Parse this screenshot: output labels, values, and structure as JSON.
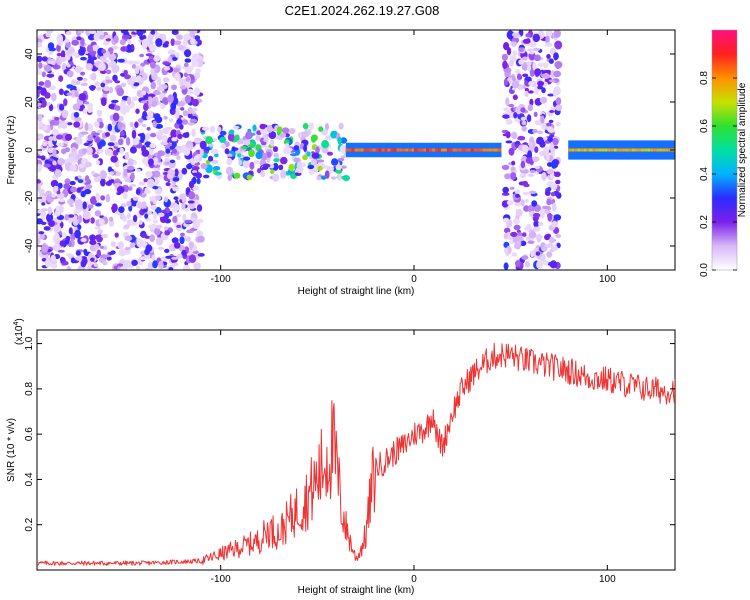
{
  "figure_title": "C2E1.2024.262.19.27.G08",
  "chart_data": [
    {
      "type": "heatmap",
      "title": "C2E1.2024.262.19.27.G08",
      "xlabel": "Height of straight line (km)",
      "ylabel": "Frequency (Hz)",
      "xlim": [
        -195,
        135
      ],
      "ylim": [
        -50,
        50
      ],
      "xticks": [
        -100,
        0,
        100
      ],
      "yticks": [
        -40,
        -20,
        0,
        20,
        40
      ],
      "colorbar": {
        "label": "Normalized spectral amplitude",
        "range": [
          0,
          1
        ],
        "ticks": [
          0.0,
          0.2,
          0.4,
          0.6,
          0.8
        ],
        "colors": [
          "#ffffff",
          "#d8b8f8",
          "#7b20e8",
          "#2c2cff",
          "#00b4ff",
          "#00e0a0",
          "#30e030",
          "#c8e000",
          "#ff9000",
          "#ff2020",
          "#ff1080"
        ]
      },
      "regions": [
        {
          "x": [
            -195,
            -110
          ],
          "f": [
            -50,
            50
          ],
          "level": 0.15,
          "desc": "broadband noise"
        },
        {
          "x": [
            -110,
            -35
          ],
          "f": [
            -12,
            10
          ],
          "level": 0.35,
          "desc": "ridge"
        },
        {
          "x": [
            -35,
            45
          ],
          "f": [
            -3,
            3
          ],
          "level": 0.9,
          "desc": "narrow band"
        },
        {
          "x": [
            47,
            75
          ],
          "f": [
            -50,
            50
          ],
          "level": 0.15,
          "desc": "broadband noise"
        },
        {
          "x": [
            80,
            135
          ],
          "f": [
            -4,
            4
          ],
          "level": 0.8,
          "desc": "narrow band"
        }
      ]
    },
    {
      "type": "line",
      "xlabel": "Height of straight line (km)",
      "ylabel": "SNR (10 * v/v)",
      "y_multiplier_label": "(x10",
      "y_multiplier_exp": "4",
      "y_multiplier_close": ")",
      "xlim": [
        -195,
        135
      ],
      "ylim": [
        0,
        1.06
      ],
      "xticks": [
        -100,
        0,
        100
      ],
      "yticks": [
        0.2,
        0.4,
        0.6,
        0.8,
        1.0
      ],
      "color": "#ee3333",
      "series": [
        {
          "name": "SNR",
          "x": [
            -195,
            -170,
            -140,
            -110,
            -100,
            -90,
            -80,
            -75,
            -70,
            -65,
            -60,
            -55,
            -50,
            -45,
            -42,
            -40,
            -38,
            -35,
            -32,
            -30,
            -28,
            -25,
            -22,
            -20,
            -15,
            -10,
            -5,
            0,
            5,
            8,
            10,
            12,
            15,
            20,
            25,
            30,
            35,
            40,
            45,
            50,
            55,
            60,
            70,
            80,
            90,
            100,
            110,
            120,
            130,
            135
          ],
          "y": [
            0.03,
            0.03,
            0.03,
            0.04,
            0.07,
            0.1,
            0.13,
            0.18,
            0.16,
            0.22,
            0.27,
            0.32,
            0.4,
            0.5,
            0.55,
            0.45,
            0.3,
            0.18,
            0.1,
            0.05,
            0.08,
            0.15,
            0.35,
            0.45,
            0.48,
            0.52,
            0.55,
            0.6,
            0.62,
            0.65,
            0.7,
            0.58,
            0.55,
            0.7,
            0.8,
            0.86,
            0.9,
            0.94,
            0.95,
            0.95,
            0.93,
            0.92,
            0.9,
            0.88,
            0.85,
            0.84,
            0.82,
            0.8,
            0.79,
            0.8
          ]
        }
      ]
    }
  ]
}
